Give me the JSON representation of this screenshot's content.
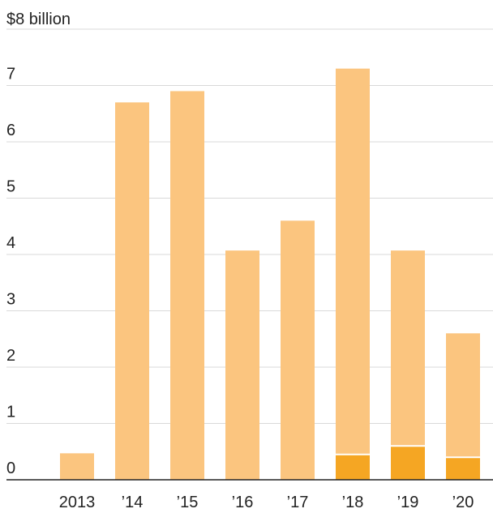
{
  "chart_data": {
    "type": "bar",
    "stacked": true,
    "title": "",
    "xlabel": "",
    "ylabel": "",
    "y_unit_label": "$8 billion",
    "ylim": [
      0,
      8
    ],
    "yticks": [
      0,
      1,
      2,
      3,
      4,
      5,
      6,
      7
    ],
    "grid": true,
    "legend": "none",
    "categories": [
      "2013",
      "’14",
      "’15",
      "’16",
      "’17",
      "’18",
      "’19",
      "’20"
    ],
    "series": [
      {
        "color": "#f5a623",
        "values": [
          0,
          0,
          0,
          0,
          0,
          0.45,
          0.6,
          0.4
        ]
      },
      {
        "color": "#fbc57f",
        "values": [
          0.47,
          6.7,
          6.9,
          4.07,
          4.6,
          6.85,
          3.47,
          2.2
        ]
      }
    ]
  }
}
